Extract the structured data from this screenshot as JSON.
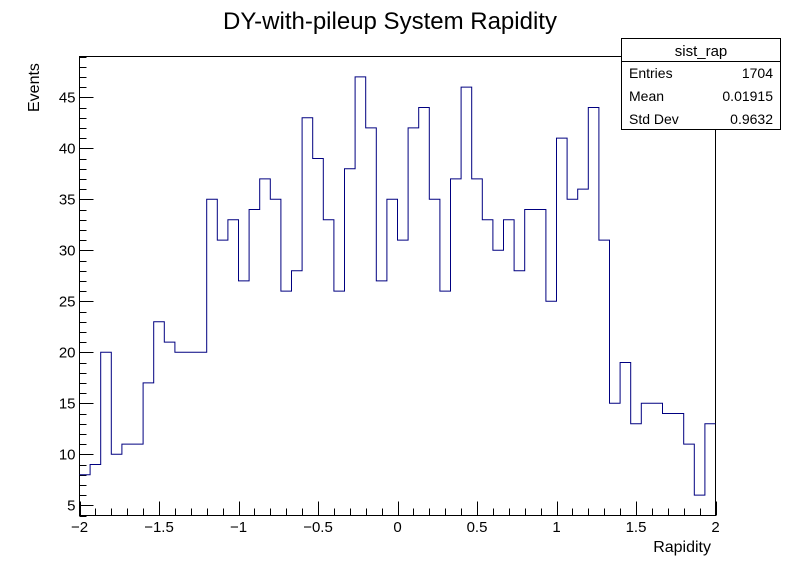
{
  "chart_data": {
    "type": "histogram",
    "title": "DY-with-pileup System Rapidity",
    "xlabel": "Rapidity",
    "ylabel": "Events",
    "xlim": [
      -2,
      2
    ],
    "ylim": [
      4,
      49
    ],
    "x_ticks": [
      -2,
      -1.5,
      -1,
      -0.5,
      0,
      0.5,
      1,
      1.5,
      2
    ],
    "x_tick_labels": [
      "−2",
      "−1.5",
      "−1",
      "−0.5",
      "0",
      "0.5",
      "1",
      "1.5",
      "2"
    ],
    "y_ticks": [
      5,
      10,
      15,
      20,
      25,
      30,
      35,
      40,
      45
    ],
    "y_tick_labels": [
      "5",
      "10",
      "15",
      "20",
      "25",
      "30",
      "35",
      "40",
      "45"
    ],
    "bin_edges_range": [
      -2,
      2
    ],
    "n_bins": 60,
    "line_color": "#000080",
    "values": [
      8,
      9,
      20,
      10,
      11,
      11,
      17,
      23,
      21,
      20,
      20,
      20,
      35,
      31,
      33,
      27,
      34,
      37,
      35,
      26,
      28,
      43,
      39,
      33,
      26,
      38,
      47,
      42,
      27,
      35,
      31,
      42,
      44,
      35,
      26,
      37,
      46,
      37,
      33,
      30,
      33,
      28,
      34,
      34,
      25,
      41,
      35,
      36,
      44,
      31,
      15,
      19,
      13,
      15,
      15,
      14,
      14,
      11,
      6,
      13
    ],
    "grid": false,
    "stats_box": {
      "title": "sist_rap",
      "rows": [
        {
          "label": "Entries",
          "value": "1704"
        },
        {
          "label": "Mean",
          "value": "0.01915"
        },
        {
          "label": "Std Dev",
          "value": "0.9632"
        }
      ]
    }
  }
}
